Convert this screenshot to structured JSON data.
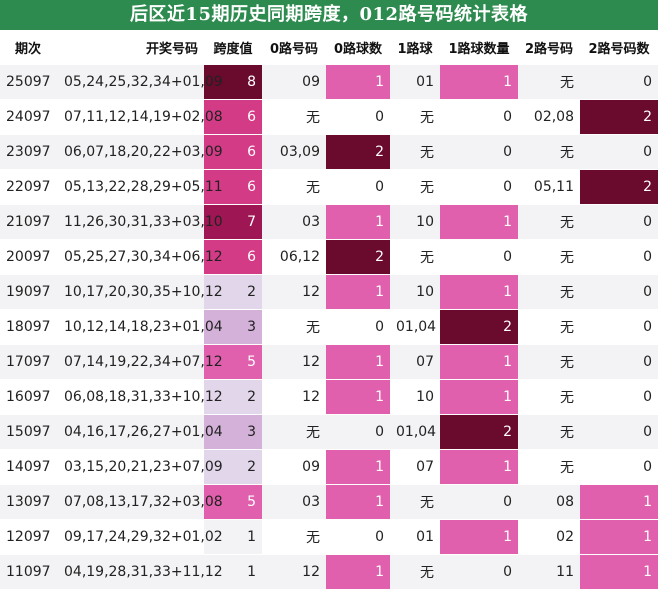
{
  "title": "后区近15期历史同期跨度，012路号码统计表格",
  "colors": {
    "title_bg": "#2e8b4f",
    "span": {
      "1": "#f3f3f5",
      "2": "#e2d7ea",
      "3": "#d3b1d8",
      "5": "#e060ad",
      "6": "#d43b86",
      "7": "#9e1754",
      "8": "#6a0a2d"
    },
    "count": {
      "1": "#e060ad",
      "2": "#6a0a2d"
    }
  },
  "headers": [
    "期次",
    "开奖号码",
    "跨度值",
    "0路号码",
    "0路球数",
    "1路球",
    "1路球数量",
    "2路号码",
    "2路号码数"
  ],
  "rows": [
    {
      "issue": "25097",
      "draw": "05,24,25,32,34+01,09",
      "span": "8",
      "r0": "09",
      "c0": "1",
      "r1": "01",
      "c1": "1",
      "r2": "无",
      "c2": "0"
    },
    {
      "issue": "24097",
      "draw": "07,11,12,14,19+02,08",
      "span": "6",
      "r0": "无",
      "c0": "0",
      "r1": "无",
      "c1": "0",
      "r2": "02,08",
      "c2": "2"
    },
    {
      "issue": "23097",
      "draw": "06,07,18,20,22+03,09",
      "span": "6",
      "r0": "03,09",
      "c0": "2",
      "r1": "无",
      "c1": "0",
      "r2": "无",
      "c2": "0"
    },
    {
      "issue": "22097",
      "draw": "05,13,22,28,29+05,11",
      "span": "6",
      "r0": "无",
      "c0": "0",
      "r1": "无",
      "c1": "0",
      "r2": "05,11",
      "c2": "2"
    },
    {
      "issue": "21097",
      "draw": "11,26,30,31,33+03,10",
      "span": "7",
      "r0": "03",
      "c0": "1",
      "r1": "10",
      "c1": "1",
      "r2": "无",
      "c2": "0"
    },
    {
      "issue": "20097",
      "draw": "05,25,27,30,34+06,12",
      "span": "6",
      "r0": "06,12",
      "c0": "2",
      "r1": "无",
      "c1": "0",
      "r2": "无",
      "c2": "0"
    },
    {
      "issue": "19097",
      "draw": "10,17,20,30,35+10,12",
      "span": "2",
      "r0": "12",
      "c0": "1",
      "r1": "10",
      "c1": "1",
      "r2": "无",
      "c2": "0"
    },
    {
      "issue": "18097",
      "draw": "10,12,14,18,23+01,04",
      "span": "3",
      "r0": "无",
      "c0": "0",
      "r1": "01,04",
      "c1": "2",
      "r2": "无",
      "c2": "0"
    },
    {
      "issue": "17097",
      "draw": "07,14,19,22,34+07,12",
      "span": "5",
      "r0": "12",
      "c0": "1",
      "r1": "07",
      "c1": "1",
      "r2": "无",
      "c2": "0"
    },
    {
      "issue": "16097",
      "draw": "06,08,18,31,33+10,12",
      "span": "2",
      "r0": "12",
      "c0": "1",
      "r1": "10",
      "c1": "1",
      "r2": "无",
      "c2": "0"
    },
    {
      "issue": "15097",
      "draw": "04,16,17,26,27+01,04",
      "span": "3",
      "r0": "无",
      "c0": "0",
      "r1": "01,04",
      "c1": "2",
      "r2": "无",
      "c2": "0"
    },
    {
      "issue": "14097",
      "draw": "03,15,20,21,23+07,09",
      "span": "2",
      "r0": "09",
      "c0": "1",
      "r1": "07",
      "c1": "1",
      "r2": "无",
      "c2": "0"
    },
    {
      "issue": "13097",
      "draw": "07,08,13,17,32+03,08",
      "span": "5",
      "r0": "03",
      "c0": "1",
      "r1": "无",
      "c1": "0",
      "r2": "08",
      "c2": "1"
    },
    {
      "issue": "12097",
      "draw": "09,17,24,29,32+01,02",
      "span": "1",
      "r0": "无",
      "c0": "0",
      "r1": "01",
      "c1": "1",
      "r2": "02",
      "c2": "1"
    },
    {
      "issue": "11097",
      "draw": "04,19,28,31,33+11,12",
      "span": "1",
      "r0": "12",
      "c0": "1",
      "r1": "无",
      "c1": "0",
      "r2": "11",
      "c2": "1"
    }
  ]
}
